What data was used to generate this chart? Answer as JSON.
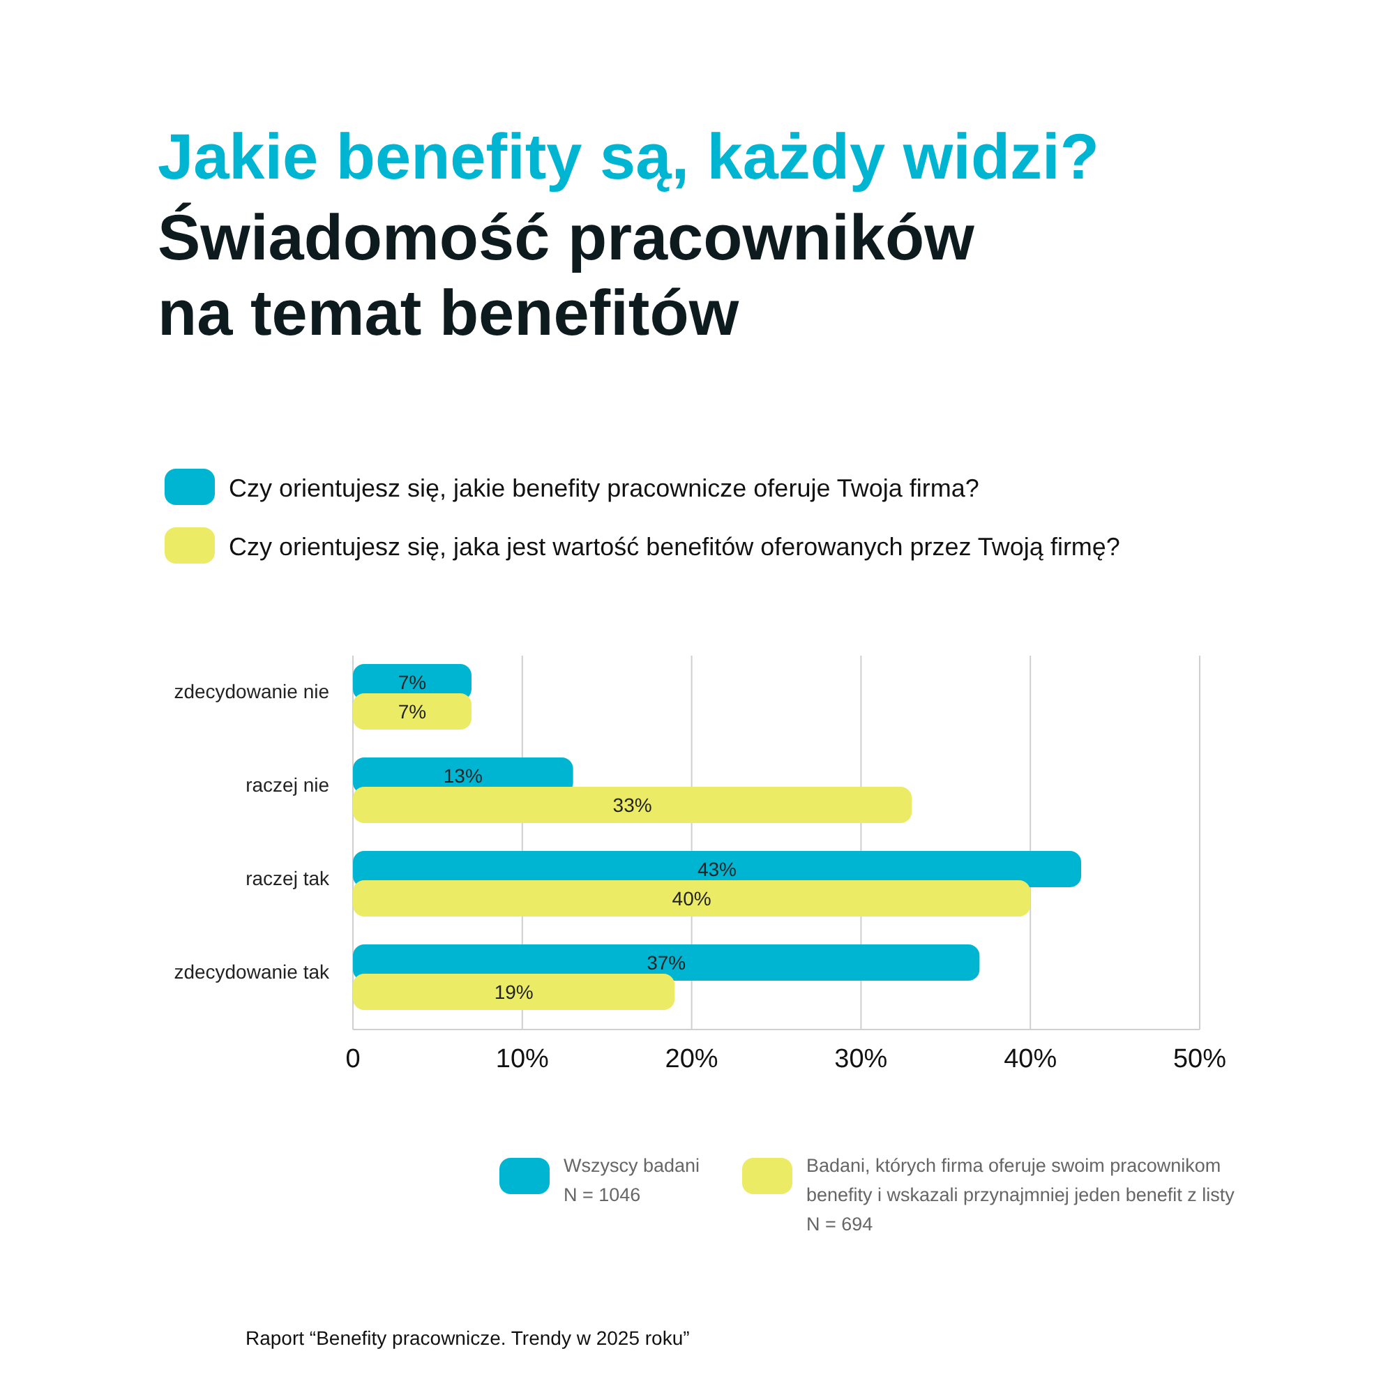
{
  "chart_data": {
    "type": "bar",
    "orientation": "horizontal",
    "title": "Jakie benefity są, każdy widzi?",
    "subtitle": "Świadomość pracowników na temat benefitów",
    "categories": [
      "zdecydowanie nie",
      "raczej nie",
      "raczej tak",
      "zdecydowanie tak"
    ],
    "series": [
      {
        "name": "Czy orientujesz się, jakie benefity pracownicze oferuje Twoja firma?",
        "color": "#00b5d1",
        "values": [
          7,
          13,
          43,
          37
        ],
        "value_labels": [
          "7%",
          "13%",
          "43%",
          "37%"
        ]
      },
      {
        "name": "Czy orientujesz się, jaka jest wartość benefitów oferowanych przez Twoją firmę?",
        "color": "#ebeb66",
        "values": [
          7,
          33,
          40,
          19
        ],
        "value_labels": [
          "7%",
          "33%",
          "40%",
          "19%"
        ]
      }
    ],
    "xlim": [
      0,
      50
    ],
    "xticks": [
      0,
      {
        "value": 10,
        "label": "10%"
      },
      {
        "value": 20,
        "label": "20%"
      },
      {
        "value": 30,
        "label": "30%"
      },
      {
        "value": 40,
        "label": "40%"
      },
      {
        "value": 50,
        "label": "50%"
      }
    ],
    "grid": "x",
    "legend": "top",
    "annotations": [
      "Wszyscy badani\nN = 1046",
      "Badani, których firma oferuje swoim pracownikom\nbenefity i wskazali przynajmniej jeden benefit z listy\nN = 694",
      "Raport “Benefity pracownicze. Trendy w 2025 roku”"
    ]
  }
}
